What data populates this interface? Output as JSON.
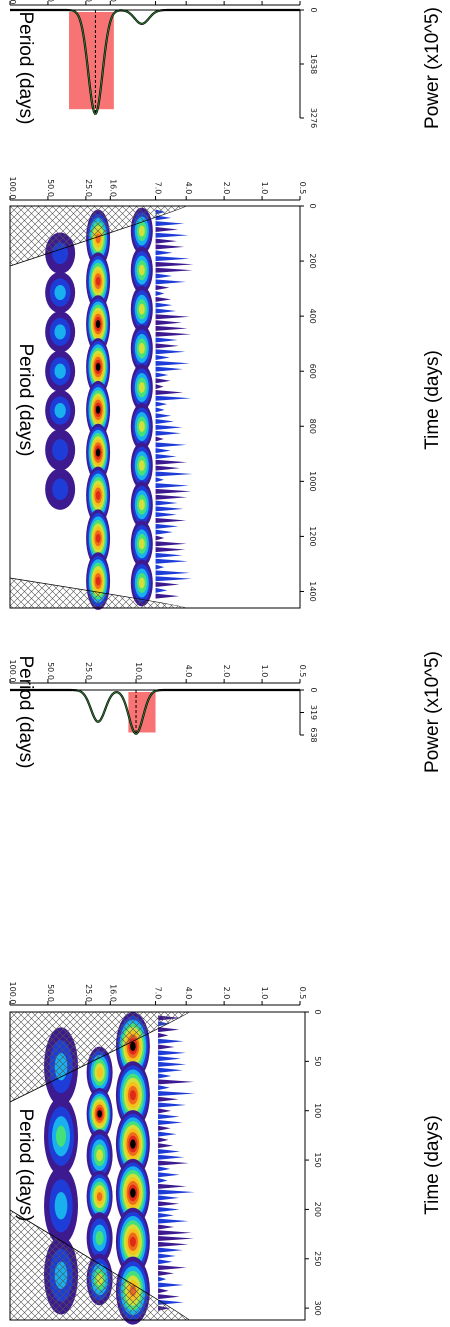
{
  "chart_data": [
    {
      "type": "heatmap",
      "panel": "wavelet-power-spectrum-1",
      "xlabel": "Time (days)",
      "ylabel": "Period (days)",
      "xlim": [
        0,
        310
      ],
      "ylim": [
        0.5,
        100
      ],
      "y_scale": "log",
      "x_ticks": [
        "0",
        "50",
        "100",
        "150",
        "200",
        "250",
        "300"
      ],
      "x_tick_values": [
        0,
        50,
        100,
        150,
        200,
        250,
        300
      ],
      "y_ticks": [
        "100.0",
        "50.0",
        "25.0",
        "16.0",
        "7.0",
        "4.0",
        "2.0",
        "1.0",
        "0.5"
      ],
      "y_tick_values": [
        100,
        50,
        25,
        16,
        7,
        4,
        2,
        1,
        0.5
      ],
      "dominant_period_bands": [
        {
          "period": 11,
          "x_start": 10,
          "x_end": 305
        },
        {
          "period": 21,
          "x_start": 30,
          "x_end": 280
        }
      ],
      "cone_of_influence": true
    },
    {
      "type": "line",
      "panel": "global-power-spectrum-1",
      "xlabel": "Power (x10^5)",
      "ylabel": "Period (days)",
      "x_ticks": [
        "0",
        "319",
        "638"
      ],
      "x_tick_values": [
        0,
        319,
        638
      ],
      "y_ticks": [
        "100.0",
        "50.0",
        "25.0",
        "10.0",
        "4.0",
        "2.0",
        "1.0",
        "0.5"
      ],
      "y_tick_values": [
        100,
        50,
        25,
        10,
        4,
        2,
        1,
        0.5
      ],
      "y_scale": "log",
      "peaks": [
        {
          "period": 20,
          "power": 450
        },
        {
          "period": 10,
          "power": 620
        }
      ],
      "highlight_range": [
        7,
        11.5
      ]
    },
    {
      "type": "heatmap",
      "panel": "wavelet-power-spectrum-2",
      "xlabel": "Time (days)",
      "ylabel": "Period (days)",
      "xlim": [
        0,
        1460
      ],
      "ylim": [
        0.5,
        100
      ],
      "y_scale": "log",
      "x_ticks": [
        "0",
        "200",
        "400",
        "600",
        "800",
        "1000",
        "1200",
        "1400"
      ],
      "x_tick_values": [
        0,
        200,
        400,
        600,
        800,
        1000,
        1200,
        1400
      ],
      "y_ticks": [
        "100.0",
        "50.0",
        "25.0",
        "16.0",
        "7.0",
        "4.0",
        "2.0",
        "1.0",
        "0.5"
      ],
      "y_tick_values": [
        100,
        50,
        25,
        16,
        7,
        4,
        2,
        1,
        0.5
      ],
      "dominant_period_bands": [
        {
          "period": 20,
          "x_start": 30,
          "x_end": 1440
        },
        {
          "period": 10,
          "x_start": 30,
          "x_end": 1440
        }
      ],
      "cone_of_influence": true
    },
    {
      "type": "line",
      "panel": "global-power-spectrum-2",
      "xlabel": "Power (x10^5)",
      "ylabel": "Period (days)",
      "x_ticks": [
        "0",
        "1638",
        "3276"
      ],
      "x_tick_values": [
        0,
        1638,
        3276
      ],
      "y_ticks": [
        "100.0",
        "50.0",
        "25.0",
        "16.0",
        "7.0",
        "4.0",
        "2.0",
        "1.0",
        "0.5"
      ],
      "y_tick_values": [
        100,
        50,
        25,
        16,
        7,
        4,
        2,
        1,
        0.5
      ],
      "y_scale": "log",
      "peaks": [
        {
          "period": 21,
          "power": 3150
        },
        {
          "period": 9,
          "power": 420
        }
      ],
      "highlight_range": [
        15,
        34
      ]
    }
  ],
  "colors": {
    "highlight": "#f87474",
    "spectrum_line": "#2e7d32",
    "contour_scale": [
      "#3d1a8f",
      "#1e3cd8",
      "#19b0ee",
      "#45e07a",
      "#d2e03a",
      "#f4c21a",
      "#ef6a1d",
      "#df2a18",
      "#000000"
    ]
  }
}
